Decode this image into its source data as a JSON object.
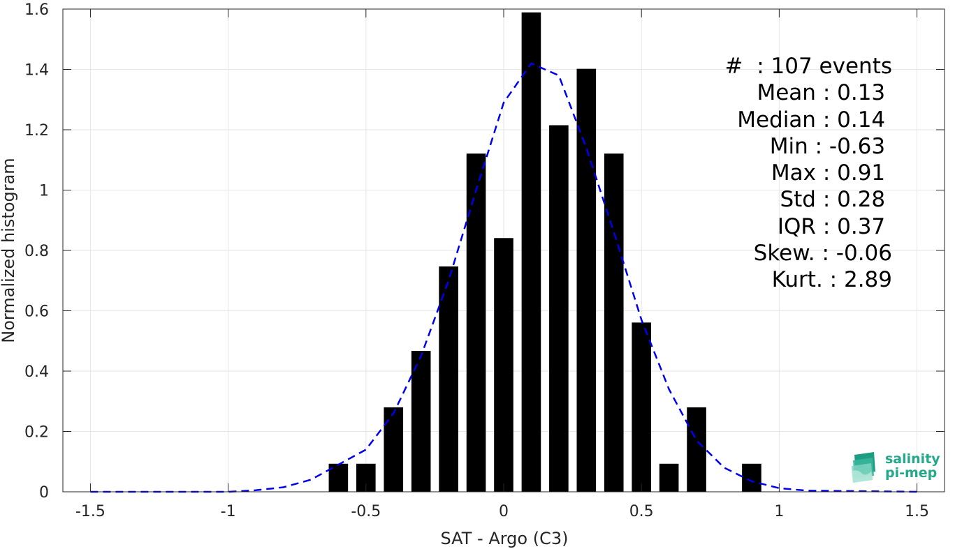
{
  "chart_data": {
    "type": "bar",
    "xlabel": "SAT - Argo (C3)",
    "ylabel": "Normalized histogram",
    "xlim": [
      -1.6,
      1.6
    ],
    "ylim": [
      0,
      1.6
    ],
    "xticks": [
      -1.5,
      -1,
      -0.5,
      0,
      0.5,
      1,
      1.5
    ],
    "xtick_labels": [
      "-1.5",
      "-1",
      "-0.5",
      "0",
      "0.5",
      "1",
      "1.5"
    ],
    "yticks": [
      0,
      0.2,
      0.4,
      0.6,
      0.8,
      1,
      1.2,
      1.4,
      1.6
    ],
    "ytick_labels": [
      "0",
      "0.2",
      "0.4",
      "0.6",
      "0.8",
      "1",
      "1.2",
      "1.4",
      "1.6"
    ],
    "grid": true,
    "bar_width": 0.07,
    "bars": {
      "color": "#000000",
      "x": [
        -0.6,
        -0.5,
        -0.4,
        -0.3,
        -0.2,
        -0.1,
        0.0,
        0.1,
        0.2,
        0.3,
        0.4,
        0.5,
        0.6,
        0.7,
        0.8,
        0.9
      ],
      "values": [
        0.093,
        0.093,
        0.28,
        0.467,
        0.747,
        1.121,
        0.841,
        1.589,
        1.215,
        1.402,
        1.121,
        0.561,
        0.093,
        0.28,
        0.0,
        0.093
      ]
    },
    "fit": {
      "style": "dashed",
      "color": "#0000ee",
      "x": [
        -1.5,
        -1.0,
        -0.9,
        -0.8,
        -0.7,
        -0.6,
        -0.5,
        -0.4,
        -0.3,
        -0.2,
        -0.1,
        0.0,
        0.1,
        0.2,
        0.3,
        0.4,
        0.5,
        0.6,
        0.7,
        0.8,
        0.9,
        1.0,
        1.1,
        1.5
      ],
      "y": [
        0.0,
        0.0,
        0.005,
        0.015,
        0.04,
        0.09,
        0.14,
        0.26,
        0.45,
        0.7,
        1.0,
        1.29,
        1.42,
        1.38,
        1.14,
        0.86,
        0.57,
        0.34,
        0.17,
        0.08,
        0.035,
        0.012,
        0.004,
        0.0
      ]
    }
  },
  "stats": [
    {
      "label": "#  ",
      "value": ": 107 events"
    },
    {
      "label": "Mean ",
      "value": ": 0.13 "
    },
    {
      "label": "Median ",
      "value": ": 0.14 "
    },
    {
      "label": "Min ",
      "value": ": -0.63 "
    },
    {
      "label": "Max ",
      "value": ": 0.91 "
    },
    {
      "label": "Std ",
      "value": ": 0.28 "
    },
    {
      "label": "IQR ",
      "value": ": 0.37 "
    },
    {
      "label": "Skew. ",
      "value": ": -0.06"
    },
    {
      "label": "Kurt. ",
      "value": ": 2.89"
    }
  ],
  "logo": {
    "line1": "salinity",
    "line2": "pi-mep",
    "color": "#23a889",
    "icon": "wave-stack-icon"
  }
}
